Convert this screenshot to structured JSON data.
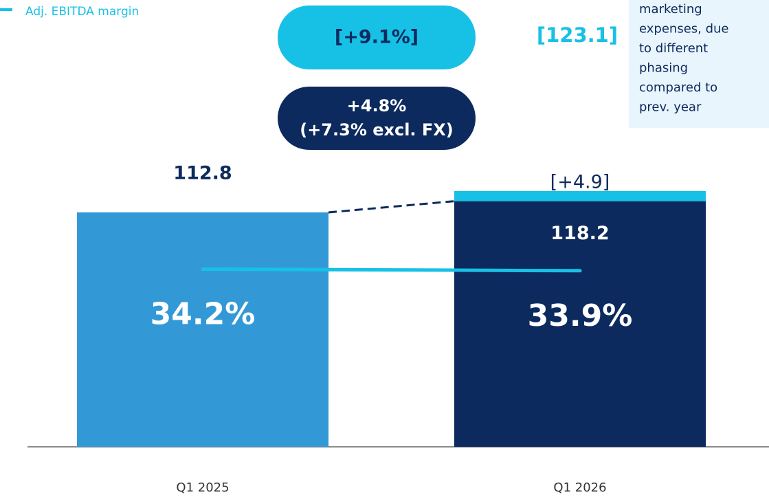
{
  "chart_data": {
    "type": "bar",
    "categories": [
      "Q1 2025",
      "Q1 2026"
    ],
    "values": [
      112.8,
      118.2
    ],
    "colors": [
      "#3399d6",
      "#0d2a5e"
    ],
    "increment": {
      "values": [
        null,
        4.9
      ],
      "value_labels": [
        null,
        "[+4.9]"
      ],
      "color": "#17c1e6"
    },
    "series": [
      {
        "name": "Adj. EBITDA margin",
        "color": "#17c1e6",
        "axis": "y2",
        "values": [
          34.2,
          33.9
        ],
        "value_labels": [
          "34.2%",
          "33.9%"
        ]
      }
    ],
    "ylim": [
      0,
      130
    ],
    "y2lim": [
      0,
      52
    ],
    "annotations": {
      "adjusted_growth": "[+9.1%]",
      "reported_growth": [
        "+4.8%",
        "(+7.3% excl. FX)"
      ],
      "adjusted_total": {
        "value": 123.1,
        "label": "[123.1]"
      },
      "note": [
        "marketing",
        "expenses, due",
        "to different",
        "phasing",
        "compared to",
        "prev. year"
      ]
    }
  }
}
